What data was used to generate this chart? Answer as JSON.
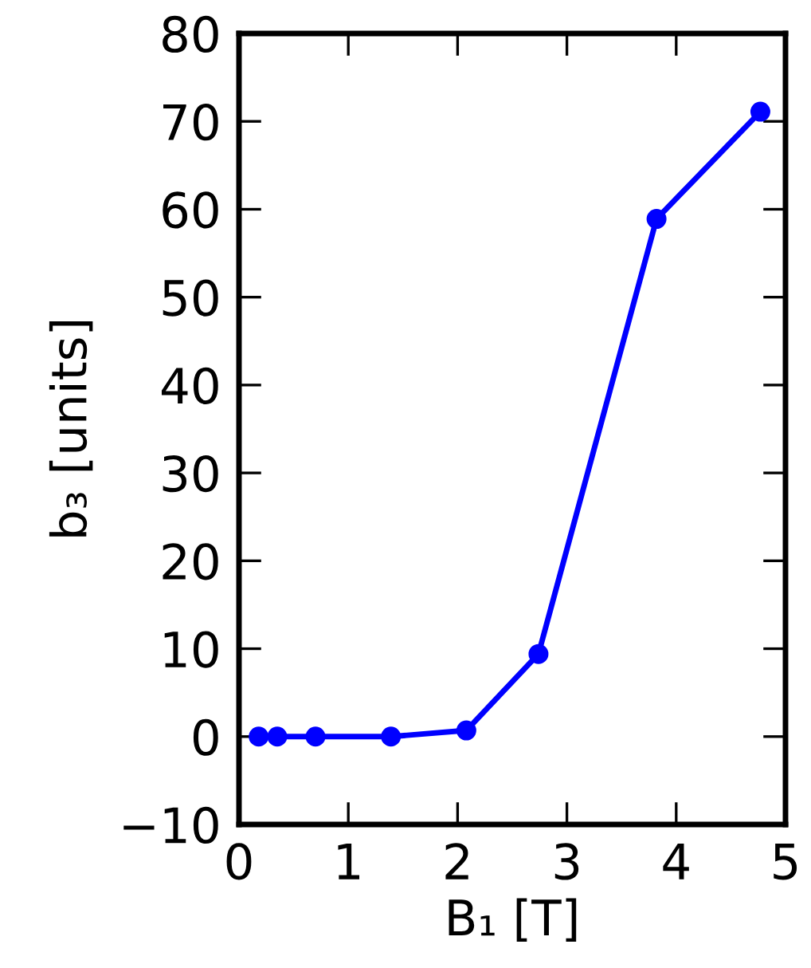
{
  "chart_data": {
    "type": "line",
    "xlabel": "B₁ [T]",
    "ylabel": "b₃ [units]",
    "x": [
      0.18,
      0.35,
      0.7,
      1.39,
      2.08,
      2.74,
      3.82,
      4.77
    ],
    "series": [
      {
        "color": "#0000ff",
        "values": [
          0,
          0,
          0,
          0,
          0.7,
          9.4,
          58.9,
          71.1
        ]
      }
    ],
    "xlim": [
      0,
      5
    ],
    "xticks": [
      0,
      1,
      2,
      3,
      4,
      5
    ],
    "ylim": [
      -10,
      80
    ],
    "yticks": [
      {
        "value": -10,
        "label": "−10"
      },
      0,
      10,
      20,
      30,
      40,
      50,
      60,
      70,
      80
    ],
    "marker": "circle",
    "line_style": "solid",
    "grid": false,
    "legend": false
  }
}
